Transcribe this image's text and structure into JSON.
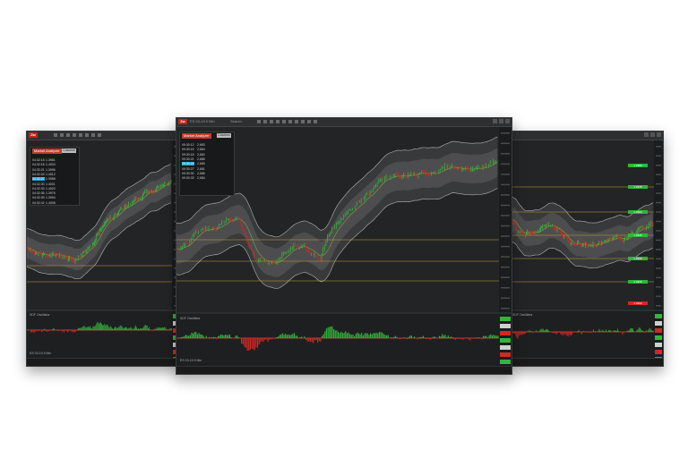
{
  "windows": {
    "left": {
      "titlebar": {
        "logo": "Zw",
        "title": "ES 03-19 5 Min"
      },
      "widget": {
        "title": "Market Analyzer",
        "button": "Columns"
      },
      "rows": [
        {
          "time": "04:32:15",
          "price": "1.3981"
        },
        {
          "time": "04:32:18",
          "price": "1.4003"
        },
        {
          "time": "04:32:21",
          "price": "1.3996"
        },
        {
          "time": "04:32:24",
          "price": "1.4012"
        },
        {
          "time": "04:32:27",
          "price": "1.3988"
        },
        {
          "time": "04:32:30",
          "price": "1.4001"
        },
        {
          "time": "04:32:33",
          "price": "1.4020"
        },
        {
          "time": "04:32:36",
          "price": "1.3975"
        },
        {
          "time": "04:32:39",
          "price": "1.3994"
        },
        {
          "time": "04:32:42",
          "price": "1.4008"
        }
      ],
      "indicator_label": "SDF Oscillator",
      "footer_label": "ES 03-19 5 Min"
    },
    "center": {
      "titlebar": {
        "logo": "Zw",
        "title": "ES 03-19 5 Min",
        "search": "Search"
      },
      "widget": {
        "title": "Market Analyzer",
        "button": "Columns"
      },
      "rows": [
        {
          "time": "09:30:12",
          "price": "2,683"
        },
        {
          "time": "09:30:15",
          "price": "2,684"
        },
        {
          "time": "09:30:18",
          "price": "2,682"
        },
        {
          "time": "09:30:21",
          "price": "2,685"
        },
        {
          "time": "09:30:24",
          "price": "2,683"
        },
        {
          "time": "09:30:27",
          "price": "2,681"
        },
        {
          "time": "09:30:30",
          "price": "2,686"
        },
        {
          "time": "09:30:33",
          "price": "2,684"
        }
      ],
      "indicator_label": "SDF Oscillator",
      "footer_label": "ES 03-19 5 Min"
    },
    "right": {
      "price_labels": [
        "1.3980",
        "1.3975",
        "1.3960",
        "1.3945",
        "1.3930",
        "1.3915",
        "1.3900"
      ],
      "indicator_label": "SDF Oscillator"
    }
  },
  "colors": {
    "up": "#2fb63b",
    "down": "#d02a24",
    "band": "#8a8a8a",
    "accent": "#c23b2c",
    "level": "#c9a23a"
  }
}
